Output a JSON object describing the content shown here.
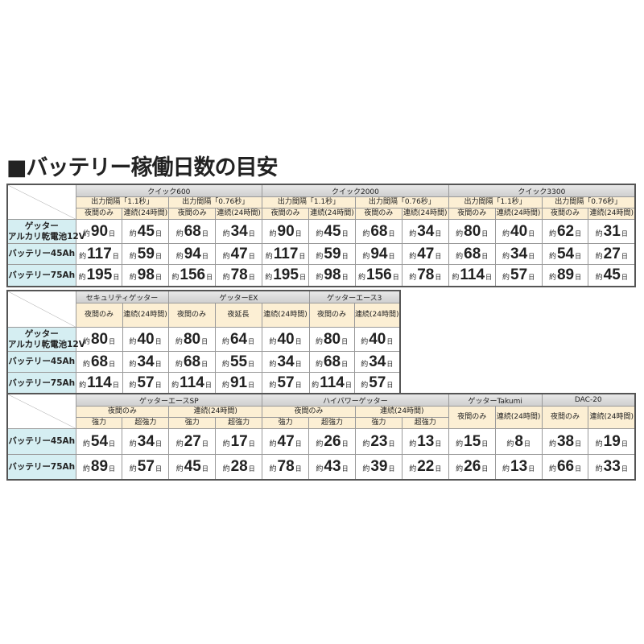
{
  "title": "■バッテリー稼働日数の目安",
  "prefix": "約",
  "suffix": "日",
  "colors": {
    "group_header": "#d6d6d6",
    "sub_header": "#fcefd4",
    "row_label": "#d5eef2"
  },
  "t1": {
    "groups": [
      "クイック600",
      "クイック2000",
      "クイック3300"
    ],
    "intervals": [
      "出力間隔「1.1秒」",
      "出力間隔「0.76秒」"
    ],
    "modes": [
      "夜間のみ",
      "連続(24時間)"
    ],
    "rows": [
      {
        "label1": "ゲッター",
        "label2": "アルカリ乾電池12V",
        "values": [
          "90",
          "45",
          "68",
          "34",
          "90",
          "45",
          "68",
          "34",
          "80",
          "40",
          "62",
          "31"
        ]
      },
      {
        "label1": "バッテリー45Ah",
        "values": [
          "117",
          "59",
          "94",
          "47",
          "117",
          "59",
          "94",
          "47",
          "68",
          "34",
          "54",
          "27"
        ]
      },
      {
        "label1": "バッテリー75Ah",
        "values": [
          "195",
          "98",
          "156",
          "78",
          "195",
          "98",
          "156",
          "78",
          "114",
          "57",
          "89",
          "45"
        ]
      }
    ]
  },
  "t2": {
    "groups": [
      "セキュリティゲッター",
      "ゲッターEX",
      "ゲッターエース3"
    ],
    "modes": [
      "夜間のみ",
      "連続(24時間)",
      "夜間のみ",
      "夜延長",
      "連続(24時間)",
      "夜間のみ",
      "連続(24時間)"
    ],
    "rows": [
      {
        "label1": "ゲッター",
        "label2": "アルカリ乾電池12V",
        "values": [
          "80",
          "40",
          "80",
          "64",
          "40",
          "80",
          "40"
        ]
      },
      {
        "label1": "バッテリー45Ah",
        "values": [
          "68",
          "34",
          "68",
          "55",
          "34",
          "68",
          "34"
        ]
      },
      {
        "label1": "バッテリー75Ah",
        "values": [
          "114",
          "57",
          "114",
          "91",
          "57",
          "114",
          "57"
        ]
      }
    ]
  },
  "t3": {
    "groups": [
      "ゲッターエースSP",
      "ハイパワーゲッター",
      "ゲッターTakumi",
      "DAC-20"
    ],
    "modes": [
      "夜間のみ",
      "連続(24時間)"
    ],
    "powers": [
      "強力",
      "超強力"
    ],
    "rows": [
      {
        "label1": "バッテリー45Ah",
        "values": [
          "54",
          "34",
          "27",
          "17",
          "47",
          "26",
          "23",
          "13",
          "15",
          "8",
          "38",
          "19"
        ]
      },
      {
        "label1": "バッテリー75Ah",
        "values": [
          "89",
          "57",
          "45",
          "28",
          "78",
          "43",
          "39",
          "22",
          "26",
          "13",
          "66",
          "33"
        ]
      }
    ]
  }
}
